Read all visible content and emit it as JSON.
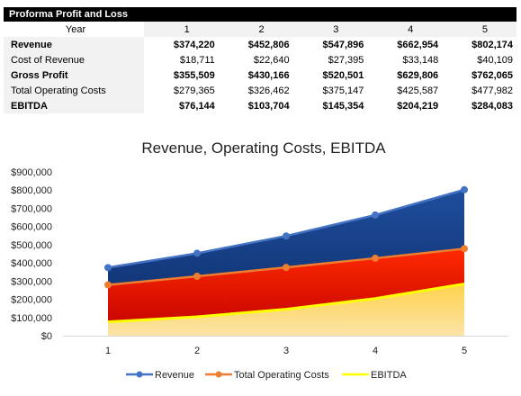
{
  "table": {
    "title": "Proforma Profit and Loss",
    "header_label": "Year",
    "years": [
      "1",
      "2",
      "3",
      "4",
      "5"
    ],
    "rows": [
      {
        "label": "Revenue",
        "bold": true,
        "values": [
          "$374,220",
          "$452,806",
          "$547,896",
          "$662,954",
          "$802,174"
        ]
      },
      {
        "label": "Cost of Revenue",
        "bold": false,
        "values": [
          "$18,711",
          "$22,640",
          "$27,395",
          "$33,148",
          "$40,109"
        ]
      },
      {
        "label": "Gross Profit",
        "bold": true,
        "values": [
          "$355,509",
          "$430,166",
          "$520,501",
          "$629,806",
          "$762,065"
        ]
      },
      {
        "label": "Total Operating Costs",
        "bold": false,
        "values": [
          "$279,365",
          "$326,462",
          "$375,147",
          "$425,587",
          "$477,982"
        ]
      },
      {
        "label": "EBITDA",
        "bold": true,
        "values": [
          "$76,144",
          "$103,704",
          "$145,354",
          "$204,219",
          "$284,083"
        ]
      }
    ]
  },
  "chart_data": {
    "type": "area",
    "title": "Revenue, Operating Costs, EBITDA",
    "categories": [
      "1",
      "2",
      "3",
      "4",
      "5"
    ],
    "series": [
      {
        "name": "Revenue",
        "values": [
          374220,
          452806,
          547896,
          662954,
          802174
        ],
        "color": "#4472c4"
      },
      {
        "name": "Total Operating Costs",
        "values": [
          279365,
          326462,
          375147,
          425587,
          477982
        ],
        "color": "#ed7d31"
      },
      {
        "name": "EBITDA",
        "values": [
          76144,
          103704,
          145354,
          204219,
          284083
        ],
        "color": "#ffff00"
      }
    ],
    "ylim": [
      0,
      900000
    ],
    "y_ticks": [
      "$0",
      "$100,000",
      "$200,000",
      "$300,000",
      "$400,000",
      "$500,000",
      "$600,000",
      "$700,000",
      "$800,000",
      "$900,000"
    ],
    "legend_position": "bottom",
    "grid": false
  },
  "colors": {
    "revenue_fill_top": "#1f4e9c",
    "revenue_fill_bottom": "#0b2a66",
    "opex_fill_top": "#ff2a00",
    "opex_fill_bottom": "#c00000",
    "ebitda_fill_top": "#ffd24d",
    "ebitda_fill_bottom": "#fbe4a8"
  }
}
